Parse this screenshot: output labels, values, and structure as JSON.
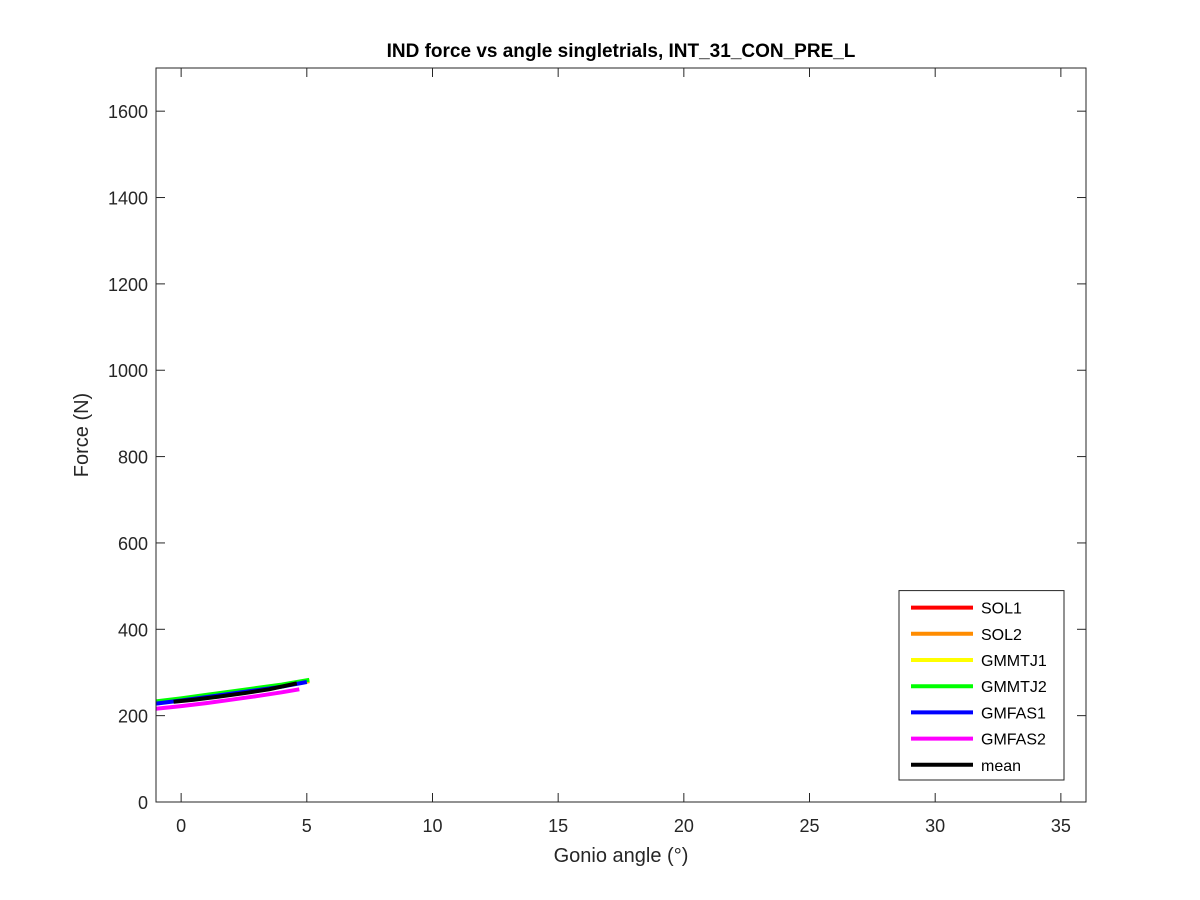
{
  "chart_data": {
    "type": "line",
    "title": "IND force vs angle singletrials, INT_31_CON_PRE_L",
    "xlabel": "Gonio angle (°)",
    "ylabel": "Force (N)",
    "xlim": [
      -1,
      36
    ],
    "ylim": [
      0,
      1700
    ],
    "x_ticks": [
      0,
      5,
      10,
      15,
      20,
      25,
      30,
      35
    ],
    "y_ticks": [
      0,
      200,
      400,
      600,
      800,
      1000,
      1200,
      1400,
      1600
    ],
    "grid": false,
    "legend_position": "bottom-right",
    "series": [
      {
        "name": "SOL1",
        "color": "#ff0000",
        "x": [
          -1.0,
          0.0,
          1.0,
          2.0,
          3.0,
          4.0,
          5.1
        ],
        "y": [
          231,
          238,
          246,
          254,
          262,
          270,
          281
        ]
      },
      {
        "name": "SOL2",
        "color": "#ff8c00",
        "x": [
          -1.0,
          0.0,
          1.0,
          2.0,
          3.0,
          4.0,
          5.1
        ],
        "y": [
          230,
          237,
          245,
          253,
          261,
          269,
          280
        ]
      },
      {
        "name": "GMMTJ1",
        "color": "#ffff00",
        "x": [
          -1.0,
          0.0,
          1.0,
          2.0,
          3.0,
          4.0,
          5.1
        ],
        "y": [
          232,
          239,
          247,
          255,
          263,
          271,
          282
        ]
      },
      {
        "name": "GMMTJ2",
        "color": "#00ff00",
        "x": [
          -1.0,
          0.0,
          1.0,
          2.0,
          3.0,
          4.0,
          5.1
        ],
        "y": [
          233,
          240,
          248,
          256,
          264,
          272,
          283
        ]
      },
      {
        "name": "GMFAS1",
        "color": "#0000ff",
        "x": [
          -1.0,
          0.0,
          1.0,
          2.0,
          3.0,
          4.0,
          5.0
        ],
        "y": [
          228,
          235,
          243,
          251,
          259,
          267,
          278
        ]
      },
      {
        "name": "GMFAS2",
        "color": "#ff00ff",
        "x": [
          -1.0,
          0.0,
          1.0,
          2.0,
          3.0,
          4.0,
          4.7
        ],
        "y": [
          216,
          222,
          229,
          237,
          245,
          254,
          261
        ]
      },
      {
        "name": "mean",
        "color": "#000000",
        "x": [
          -0.3,
          0.5,
          1.5,
          2.5,
          3.5,
          4.6
        ],
        "y": [
          232,
          237,
          244,
          252,
          261,
          275
        ]
      }
    ]
  }
}
